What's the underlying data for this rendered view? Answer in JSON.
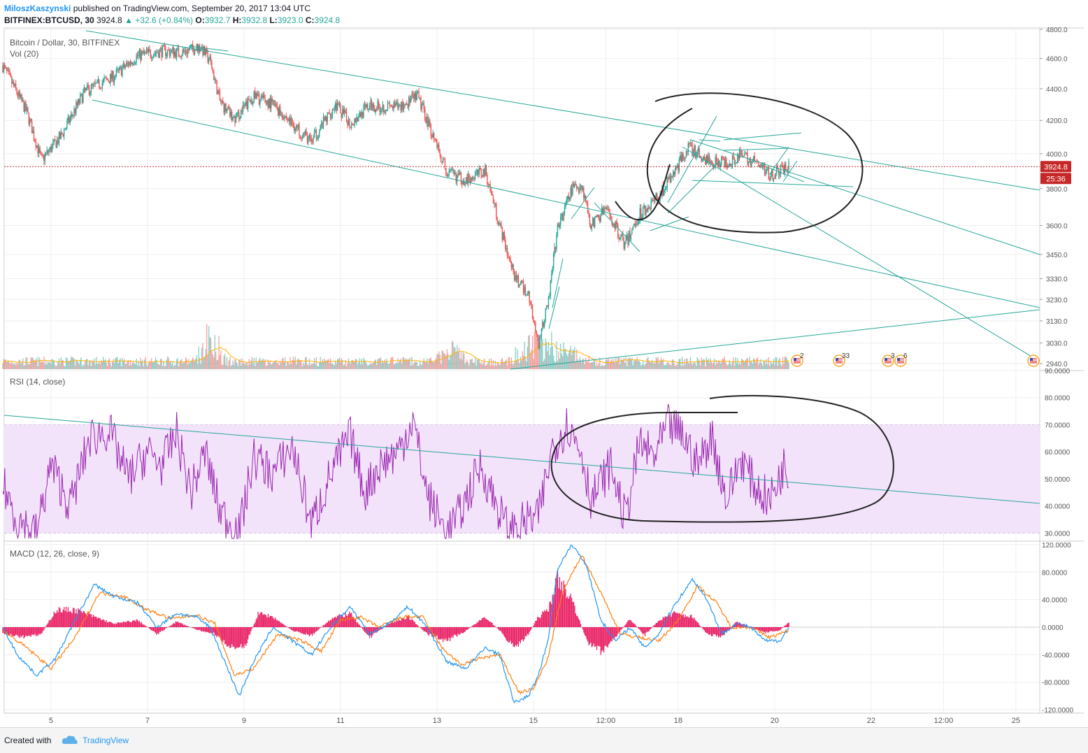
{
  "header": {
    "author": "MiloszKaszynski",
    "published": "published on TradingView.com, September 20, 2017 13:04 UTC",
    "symbol": "BITFINEX:BTCUSD, 30",
    "last": "3924.8",
    "change": "▲ +32.6 (+0.84%)",
    "o_label": "O:",
    "o": "3932.7",
    "h_label": "H:",
    "h": "3932.8",
    "l_label": "L:",
    "l": "3923.0",
    "c_label": "C:",
    "c": "3924.8"
  },
  "panes": {
    "price": {
      "title": "Bitcoin / Dollar, 30, BITFINEX",
      "vol_label": "Vol (20)"
    },
    "rsi": {
      "title": "RSI (14, close)"
    },
    "macd": {
      "title": "MACD (12, 26, close, 9)"
    }
  },
  "price_badge": "3924.8",
  "timer_badge": "25:36",
  "events": [
    "2",
    "33",
    "3",
    "6",
    ""
  ],
  "footer": {
    "created": "Created with",
    "brand": "TradingView"
  },
  "colors": {
    "up_candle": "#26a69a",
    "down_candle": "#ef5350",
    "trendline": "#26a69a",
    "rsi_line": "#9c27b0",
    "rsi_band": "#f2e3fb",
    "macd_line": "#2196f3",
    "signal_line": "#ff7f0e",
    "histogram": "#e91e63",
    "last_price": "#c62828",
    "annotation": "#222222"
  },
  "chart_data": [
    {
      "type": "candlestick",
      "title": "Bitcoin / Dollar, 30, BITFINEX",
      "x_ticks": [
        "5",
        "7",
        "9",
        "11",
        "13",
        "15",
        "12:00",
        "18",
        "20",
        "22",
        "12:00",
        "25"
      ],
      "y_ticks": [
        4800.0,
        4600.0,
        4400.0,
        4200.0,
        4000.0,
        3924.8,
        3800.0,
        3600.0,
        3450.0,
        3330.0,
        3230.0,
        3130.0,
        3030.0,
        2940.0
      ],
      "y_range": [
        2910,
        4810
      ],
      "y_scale": "log",
      "close_path": [
        [
          4.0,
          4550
        ],
        [
          4.5,
          4250
        ],
        [
          4.8,
          3960
        ],
        [
          5.2,
          4100
        ],
        [
          5.7,
          4380
        ],
        [
          6.3,
          4480
        ],
        [
          6.8,
          4620
        ],
        [
          7.3,
          4650
        ],
        [
          7.7,
          4640
        ],
        [
          8.1,
          4680
        ],
        [
          8.3,
          4580
        ],
        [
          8.5,
          4320
        ],
        [
          8.8,
          4200
        ],
        [
          9.2,
          4350
        ],
        [
          9.6,
          4300
        ],
        [
          10.0,
          4180
        ],
        [
          10.4,
          4070
        ],
        [
          10.9,
          4300
        ],
        [
          11.2,
          4180
        ],
        [
          11.6,
          4290
        ],
        [
          12.2,
          4280
        ],
        [
          12.6,
          4350
        ],
        [
          13.0,
          4050
        ],
        [
          13.2,
          3890
        ],
        [
          13.6,
          3850
        ],
        [
          14.0,
          3900
        ],
        [
          14.3,
          3600
        ],
        [
          14.6,
          3340
        ],
        [
          14.9,
          3250
        ],
        [
          15.1,
          3030
        ],
        [
          15.3,
          3200
        ],
        [
          15.5,
          3580
        ],
        [
          15.8,
          3800
        ],
        [
          16.0,
          3820
        ],
        [
          16.2,
          3600
        ],
        [
          16.5,
          3690
        ],
        [
          16.9,
          3500
        ],
        [
          17.2,
          3660
        ],
        [
          17.6,
          3760
        ],
        [
          17.9,
          3880
        ],
        [
          18.2,
          4040
        ],
        [
          18.6,
          3960
        ],
        [
          19.0,
          3950
        ],
        [
          19.3,
          3990
        ],
        [
          19.6,
          3950
        ],
        [
          19.9,
          3880
        ],
        [
          20.3,
          3924.8
        ]
      ],
      "volume_spikes": [
        [
          8.3,
          3.2
        ],
        [
          13.3,
          1.8
        ],
        [
          14.9,
          3.0
        ],
        [
          15.3,
          2.4
        ],
        [
          15.8,
          1.6
        ]
      ],
      "volume_sma_period": 20
    },
    {
      "type": "line",
      "title": "RSI (14, close)",
      "y_ticks": [
        90,
        80,
        70,
        60,
        50,
        40,
        30
      ],
      "ylim": [
        27,
        90
      ],
      "band": [
        30,
        70
      ],
      "series": [
        {
          "name": "RSI",
          "values": [
            [
              4.0,
              48
            ],
            [
              4.3,
              35
            ],
            [
              4.7,
              30
            ],
            [
              5.0,
              55
            ],
            [
              5.4,
              40
            ],
            [
              5.8,
              65
            ],
            [
              6.2,
              68
            ],
            [
              6.6,
              50
            ],
            [
              7.0,
              60
            ],
            [
              7.3,
              55
            ],
            [
              7.6,
              67
            ],
            [
              7.9,
              45
            ],
            [
              8.2,
              60
            ],
            [
              8.5,
              38
            ],
            [
              8.9,
              30
            ],
            [
              9.2,
              58
            ],
            [
              9.6,
              52
            ],
            [
              10.0,
              62
            ],
            [
              10.4,
              33
            ],
            [
              10.8,
              52
            ],
            [
              11.2,
              66
            ],
            [
              11.5,
              45
            ],
            [
              11.8,
              55
            ],
            [
              12.2,
              60
            ],
            [
              12.5,
              72
            ],
            [
              12.8,
              44
            ],
            [
              13.2,
              30
            ],
            [
              13.5,
              38
            ],
            [
              13.9,
              55
            ],
            [
              14.2,
              42
            ],
            [
              14.5,
              30
            ],
            [
              14.8,
              34
            ],
            [
              15.1,
              36
            ],
            [
              15.4,
              62
            ],
            [
              15.7,
              70
            ],
            [
              16.0,
              60
            ],
            [
              16.2,
              42
            ],
            [
              16.6,
              55
            ],
            [
              16.9,
              35
            ],
            [
              17.2,
              63
            ],
            [
              17.5,
              58
            ],
            [
              17.8,
              70
            ],
            [
              18.1,
              66
            ],
            [
              18.4,
              55
            ],
            [
              18.7,
              66
            ],
            [
              19.0,
              42
            ],
            [
              19.3,
              58
            ],
            [
              19.6,
              47
            ],
            [
              19.9,
              42
            ],
            [
              20.2,
              55
            ],
            [
              20.3,
              51
            ]
          ]
        }
      ]
    },
    {
      "type": "bar",
      "title": "MACD (12, 26, close, 9)",
      "y_ticks": [
        120,
        80,
        40,
        0,
        -40,
        -80,
        -120
      ],
      "ylim": [
        -125,
        125
      ],
      "series": [
        {
          "name": "MACD",
          "values": [
            [
              4.0,
              0
            ],
            [
              4.3,
              -40
            ],
            [
              4.7,
              -70
            ],
            [
              5.1,
              -45
            ],
            [
              5.5,
              10
            ],
            [
              5.9,
              62
            ],
            [
              6.3,
              45
            ],
            [
              6.8,
              35
            ],
            [
              7.2,
              0
            ],
            [
              7.6,
              20
            ],
            [
              8.0,
              15
            ],
            [
              8.3,
              0
            ],
            [
              8.6,
              -50
            ],
            [
              8.9,
              -100
            ],
            [
              9.2,
              -50
            ],
            [
              9.6,
              0
            ],
            [
              10.0,
              -20
            ],
            [
              10.4,
              -40
            ],
            [
              10.8,
              0
            ],
            [
              11.2,
              30
            ],
            [
              11.6,
              -10
            ],
            [
              12.0,
              5
            ],
            [
              12.4,
              30
            ],
            [
              12.8,
              0
            ],
            [
              13.2,
              -50
            ],
            [
              13.6,
              -60
            ],
            [
              14.0,
              -30
            ],
            [
              14.3,
              -40
            ],
            [
              14.6,
              -110
            ],
            [
              14.9,
              -100
            ],
            [
              15.1,
              -70
            ],
            [
              15.3,
              -20
            ],
            [
              15.5,
              85
            ],
            [
              15.8,
              120
            ],
            [
              16.1,
              90
            ],
            [
              16.4,
              10
            ],
            [
              16.7,
              -20
            ],
            [
              17.0,
              0
            ],
            [
              17.3,
              -30
            ],
            [
              17.6,
              -10
            ],
            [
              17.9,
              30
            ],
            [
              18.3,
              70
            ],
            [
              18.6,
              40
            ],
            [
              18.9,
              -10
            ],
            [
              19.2,
              5
            ],
            [
              19.5,
              0
            ],
            [
              19.8,
              -20
            ],
            [
              20.1,
              -20
            ],
            [
              20.3,
              0
            ]
          ]
        },
        {
          "name": "Signal",
          "values": [
            [
              4.0,
              -5
            ],
            [
              4.5,
              -30
            ],
            [
              5.0,
              -60
            ],
            [
              5.5,
              -15
            ],
            [
              6.0,
              50
            ],
            [
              6.5,
              45
            ],
            [
              7.0,
              25
            ],
            [
              7.5,
              12
            ],
            [
              8.0,
              18
            ],
            [
              8.4,
              5
            ],
            [
              8.8,
              -70
            ],
            [
              9.2,
              -60
            ],
            [
              9.7,
              -10
            ],
            [
              10.2,
              -20
            ],
            [
              10.6,
              -35
            ],
            [
              11.0,
              10
            ],
            [
              11.4,
              15
            ],
            [
              11.8,
              0
            ],
            [
              12.3,
              15
            ],
            [
              12.7,
              15
            ],
            [
              13.1,
              -30
            ],
            [
              13.5,
              -55
            ],
            [
              13.9,
              -45
            ],
            [
              14.3,
              -40
            ],
            [
              14.7,
              -95
            ],
            [
              15.0,
              -90
            ],
            [
              15.3,
              -45
            ],
            [
              15.6,
              50
            ],
            [
              16.0,
              105
            ],
            [
              16.4,
              50
            ],
            [
              16.8,
              -10
            ],
            [
              17.2,
              -15
            ],
            [
              17.6,
              -20
            ],
            [
              18.0,
              10
            ],
            [
              18.4,
              60
            ],
            [
              18.8,
              35
            ],
            [
              19.1,
              0
            ],
            [
              19.5,
              0
            ],
            [
              19.9,
              -15
            ],
            [
              20.3,
              -5
            ]
          ]
        }
      ],
      "histogram": [
        [
          4.0,
          -10
        ],
        [
          4.4,
          -15
        ],
        [
          4.8,
          -10
        ],
        [
          5.1,
          25
        ],
        [
          5.5,
          25
        ],
        [
          5.9,
          15
        ],
        [
          6.3,
          5
        ],
        [
          6.8,
          10
        ],
        [
          7.2,
          -10
        ],
        [
          7.6,
          8
        ],
        [
          8.0,
          -3
        ],
        [
          8.4,
          -10
        ],
        [
          8.7,
          -30
        ],
        [
          9.0,
          -30
        ],
        [
          9.3,
          20
        ],
        [
          9.6,
          15
        ],
        [
          10.0,
          -5
        ],
        [
          10.4,
          -12
        ],
        [
          10.8,
          12
        ],
        [
          11.2,
          20
        ],
        [
          11.6,
          -15
        ],
        [
          12.0,
          5
        ],
        [
          12.4,
          15
        ],
        [
          12.8,
          -10
        ],
        [
          13.2,
          -20
        ],
        [
          13.6,
          -5
        ],
        [
          14.0,
          15
        ],
        [
          14.3,
          -5
        ],
        [
          14.6,
          -30
        ],
        [
          14.9,
          -10
        ],
        [
          15.1,
          15
        ],
        [
          15.3,
          25
        ],
        [
          15.5,
          70
        ],
        [
          15.8,
          40
        ],
        [
          16.1,
          -20
        ],
        [
          16.4,
          -35
        ],
        [
          16.7,
          -15
        ],
        [
          17.0,
          12
        ],
        [
          17.3,
          -12
        ],
        [
          17.6,
          10
        ],
        [
          17.9,
          20
        ],
        [
          18.3,
          15
        ],
        [
          18.6,
          -10
        ],
        [
          18.9,
          -15
        ],
        [
          19.2,
          8
        ],
        [
          19.5,
          0
        ],
        [
          19.8,
          -8
        ],
        [
          20.1,
          -5
        ],
        [
          20.3,
          8
        ]
      ]
    }
  ]
}
